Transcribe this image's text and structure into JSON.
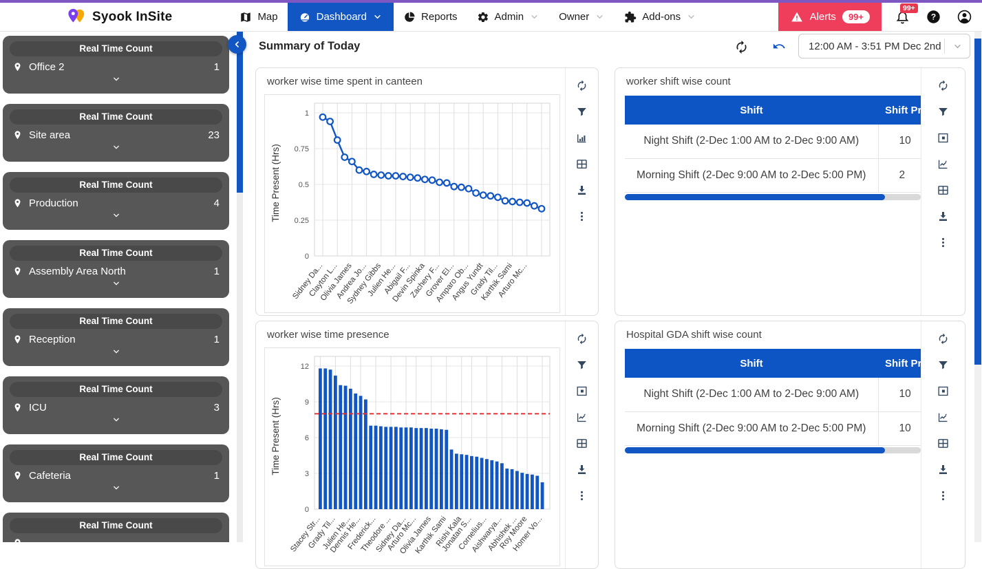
{
  "brand": {
    "name": "Syook InSite"
  },
  "navbar": {
    "items": [
      {
        "label": "Map",
        "icon": "map-icon",
        "active": false,
        "chevron": false
      },
      {
        "label": "Dashboard",
        "icon": "dashboard-gauge-icon",
        "active": true,
        "chevron": true
      },
      {
        "label": "Reports",
        "icon": "reports-pie-icon",
        "active": false,
        "chevron": false
      },
      {
        "label": "Admin",
        "icon": "admin-gear-icon",
        "active": false,
        "chevron": true
      },
      {
        "label": "Owner",
        "icon": "",
        "active": false,
        "chevron": true
      },
      {
        "label": "Add-ons",
        "icon": "addons-puzzle-icon",
        "active": false,
        "chevron": true
      }
    ],
    "alerts": {
      "label": "Alerts",
      "badge": "99+"
    },
    "bell_badge": "99+",
    "colors": {
      "active_bg": "#1256c4",
      "alerts_bg": "#ee3e5c",
      "badge_red": "#e8374f",
      "top_border": "#7e57c2"
    }
  },
  "sidebar": {
    "card_header": "Real Time Count",
    "items": [
      {
        "name": "Office 2",
        "count": "1"
      },
      {
        "name": "Site area",
        "count": "23"
      },
      {
        "name": "Production",
        "count": "4"
      },
      {
        "name": "Assembly Area North",
        "count": "1"
      },
      {
        "name": "Reception",
        "count": "1"
      },
      {
        "name": "ICU",
        "count": "3"
      },
      {
        "name": "Cafeteria",
        "count": "1"
      },
      {
        "name": "",
        "count": ""
      }
    ]
  },
  "main_header": {
    "title": "Summary of Today",
    "date_range": "12:00 AM - 3:51 PM Dec 2nd"
  },
  "chart_data": [
    {
      "type": "line",
      "title": "worker wise time spent in canteen",
      "xlabel": "",
      "ylabel": "Time Present (Hrs)",
      "yticks": [
        0,
        0.25,
        0.5,
        0.75,
        1
      ],
      "ylim": [
        0,
        1.05
      ],
      "grid": true,
      "color": "#1256c4",
      "values": [
        0.97,
        0.94,
        0.81,
        0.69,
        0.66,
        0.6,
        0.59,
        0.57,
        0.565,
        0.56,
        0.56,
        0.555,
        0.55,
        0.545,
        0.535,
        0.53,
        0.515,
        0.51,
        0.485,
        0.48,
        0.47,
        0.44,
        0.425,
        0.42,
        0.41,
        0.385,
        0.38,
        0.375,
        0.37,
        0.35,
        0.33
      ],
      "x_labels": [
        "Sidney Da...",
        "Clayton L...",
        "Olivia James",
        "Andrea Jo...",
        "Sydney Gibbs",
        "Julien He...",
        "Abigail F...",
        "Devin Spinka",
        "Zachery F...",
        "Grover El...",
        "Amparo Ob...",
        "Angus Yundt",
        "Grady Til...",
        "Karthik Sami",
        "Arturo Mc..."
      ],
      "label_every": 2
    },
    {
      "type": "bar",
      "title": "worker wise time presence",
      "xlabel": "",
      "ylabel": "Time Present (Hrs)",
      "yticks": [
        0,
        3,
        6,
        9,
        12
      ],
      "ylim": [
        0,
        12.6
      ],
      "grid": true,
      "color": "#1256c4",
      "threshold": 8,
      "threshold_color": "#e63030",
      "values": [
        11.8,
        11.8,
        11.7,
        11.2,
        10.4,
        10.35,
        10.1,
        9.7,
        9.5,
        9.2,
        7.0,
        7.0,
        6.95,
        6.9,
        6.9,
        6.9,
        6.85,
        6.85,
        6.85,
        6.8,
        6.8,
        6.8,
        6.75,
        6.75,
        6.7,
        6.65,
        5.0,
        4.65,
        4.6,
        4.55,
        4.45,
        4.4,
        4.3,
        4.2,
        4.1,
        4.0,
        3.85,
        3.4,
        3.35,
        3.2,
        3.05,
        2.95,
        2.9,
        2.8,
        2.25
      ],
      "x_labels": [
        "Stacey Str...",
        "Grady Til...",
        "Julien He...",
        "Dennis He...",
        "Frederick...",
        "Theodore ...",
        "Sidney Da...",
        "Arturo Mc...",
        "Olivia James",
        "Karthik Sami",
        "Rishi Kala",
        "Jonatan S...",
        "Cornelius...",
        "Aishwarya...",
        "Abhishek ...",
        "Roy Moore",
        "Homer Vo..."
      ],
      "label_indices": [
        0,
        3,
        6,
        8,
        11,
        14,
        17,
        19,
        22,
        25,
        28,
        30,
        33,
        36,
        39,
        41,
        44
      ]
    },
    {
      "type": "table",
      "title": "worker shift wise count",
      "columns": [
        "Shift",
        "Shift Present Count"
      ],
      "rows": [
        [
          "Night Shift (2-Dec 1:00 AM to 2-Dec 9:00 AM)",
          "10"
        ],
        [
          "Morning Shift (2-Dec 9:00 AM to 2-Dec 5:00 PM)",
          "2"
        ]
      ],
      "scroll_thumb_pct": 88
    },
    {
      "type": "table",
      "title": "Hospital GDA shift wise count",
      "columns": [
        "Shift",
        "Shift Present Count"
      ],
      "rows": [
        [
          "Night Shift (2-Dec 1:00 AM to 2-Dec 9:00 AM)",
          "10"
        ],
        [
          "Morning Shift (2-Dec 9:00 AM to 2-Dec 5:00 PM)",
          "10"
        ]
      ],
      "scroll_thumb_pct": 88
    }
  ],
  "panels": [
    {
      "name": "canteen-time-panel",
      "chart_ref": 0,
      "content": "line",
      "icons": [
        "refresh-icon",
        "filter-icon",
        "bar-chart-icon",
        "table-icon",
        "download-icon",
        "kebab-icon"
      ]
    },
    {
      "name": "worker-shift-panel",
      "chart_ref": 2,
      "content": "table",
      "icons": [
        "refresh-icon",
        "filter-icon",
        "frame-icon",
        "line-chart-icon",
        "table-icon",
        "download-icon",
        "kebab-icon"
      ]
    },
    {
      "name": "time-presence-panel",
      "chart_ref": 1,
      "content": "bar",
      "icons": [
        "refresh-icon",
        "filter-icon",
        "frame-icon",
        "line-chart-icon",
        "table-icon",
        "download-icon",
        "kebab-icon"
      ]
    },
    {
      "name": "hospital-gda-panel",
      "chart_ref": 3,
      "content": "table",
      "icons": [
        "refresh-icon",
        "filter-icon",
        "frame-icon",
        "line-chart-icon",
        "table-icon",
        "download-icon",
        "kebab-icon"
      ]
    }
  ]
}
